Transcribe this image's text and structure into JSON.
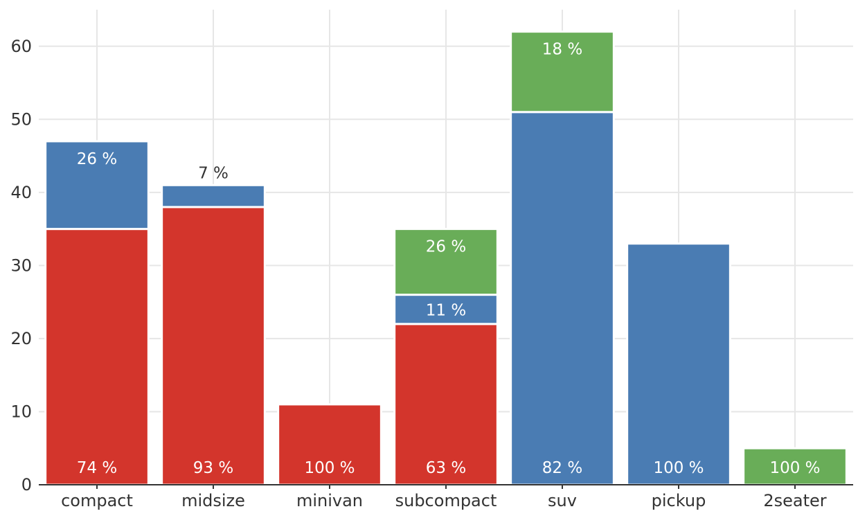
{
  "chart_data": {
    "type": "bar",
    "stacked": true,
    "grid": true,
    "title": "",
    "xlabel": "",
    "ylabel": "",
    "ylim": [
      0,
      65
    ],
    "yticks": [
      0,
      10,
      20,
      30,
      40,
      50,
      60
    ],
    "categories": [
      "compact",
      "midsize",
      "minivan",
      "subcompact",
      "suv",
      "pickup",
      "2seater"
    ],
    "series": [
      {
        "color": "#d3352c",
        "values": [
          35,
          38,
          11,
          22,
          0,
          0,
          0
        ],
        "labels": [
          "74 %",
          "93 %",
          "100 %",
          "63 %",
          "",
          "",
          ""
        ]
      },
      {
        "color": "#4a7cb3",
        "values": [
          12,
          3,
          0,
          4,
          51,
          33,
          0
        ],
        "labels": [
          "26 %",
          "7 %",
          "",
          "11 %",
          "82 %",
          "100 %",
          ""
        ]
      },
      {
        "color": "#69ad58",
        "values": [
          0,
          0,
          0,
          9,
          11,
          0,
          5
        ],
        "labels": [
          "",
          "",
          "",
          "26 %",
          "18 %",
          "",
          "100 %"
        ]
      }
    ]
  }
}
